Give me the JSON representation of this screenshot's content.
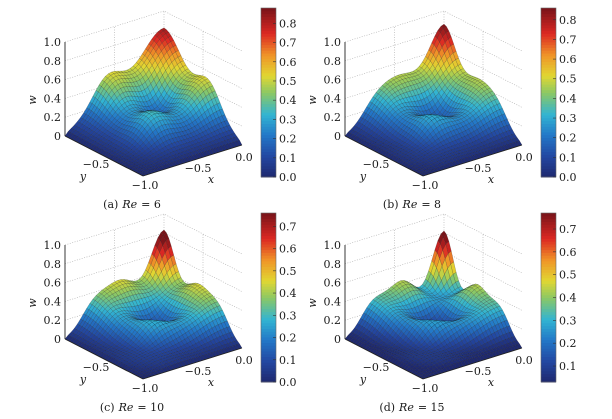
{
  "chart_data": [
    {
      "type": "surface",
      "caption": {
        "label": "(a)",
        "param": "Re",
        "value": "= 6"
      },
      "zlabel": "w",
      "xlabel": "x",
      "ylabel": "y",
      "zticks": [
        "0",
        "0.2",
        "0.4",
        "0.6",
        "0.8",
        "1.0"
      ],
      "xticks": [
        "−1.0",
        "−0.5",
        "0.0"
      ],
      "yticks": [
        "−0.5",
        "−1.0"
      ],
      "zlim": [
        0,
        1
      ],
      "xlim": [
        -1,
        0
      ],
      "ylim": [
        -1,
        0
      ],
      "max_w": 0.88,
      "colorbar": {
        "range": [
          0,
          0.88
        ],
        "ticks": [
          "0.0",
          "0.1",
          "0.2",
          "0.3",
          "0.4",
          "0.5",
          "0.6",
          "0.7",
          "0.8"
        ],
        "tick_values": [
          0,
          0.1,
          0.2,
          0.3,
          0.4,
          0.5,
          0.6,
          0.7,
          0.8
        ]
      },
      "colormap": "jet",
      "grid": true
    },
    {
      "type": "surface",
      "caption": {
        "label": "(b)",
        "param": "Re",
        "value": "= 8"
      },
      "zlabel": "w",
      "xlabel": "x",
      "ylabel": "y",
      "zticks": [
        "0",
        "0.2",
        "0.4",
        "0.6",
        "0.8",
        "1.0"
      ],
      "xticks": [
        "−1.0",
        "−0.5",
        "0.0"
      ],
      "yticks": [
        "−0.5",
        "−1.0"
      ],
      "zlim": [
        0,
        1
      ],
      "xlim": [
        -1,
        0
      ],
      "ylim": [
        -1,
        0
      ],
      "max_w": 0.85,
      "colorbar": {
        "range": [
          0,
          0.86
        ],
        "ticks": [
          "0.0",
          "0.1",
          "0.2",
          "0.3",
          "0.4",
          "0.5",
          "0.6",
          "0.7",
          "0.8"
        ],
        "tick_values": [
          0,
          0.1,
          0.2,
          0.3,
          0.4,
          0.5,
          0.6,
          0.7,
          0.8
        ]
      },
      "colormap": "jet",
      "grid": true
    },
    {
      "type": "surface",
      "caption": {
        "label": "(c)",
        "param": "Re",
        "value": "= 10"
      },
      "zlabel": "w",
      "xlabel": "x",
      "ylabel": "y",
      "zticks": [
        "0",
        "0.2",
        "0.4",
        "0.6",
        "0.8",
        "1.0"
      ],
      "xticks": [
        "−1.0",
        "−0.5",
        "0.0"
      ],
      "yticks": [
        "−0.5",
        "−1.0"
      ],
      "zlim": [
        0,
        1
      ],
      "xlim": [
        -1,
        0
      ],
      "ylim": [
        -1,
        0
      ],
      "max_w": 0.76,
      "colorbar": {
        "range": [
          0,
          0.76
        ],
        "ticks": [
          "0.0",
          "0.1",
          "0.2",
          "0.3",
          "0.4",
          "0.5",
          "0.6",
          "0.7"
        ],
        "tick_values": [
          0,
          0.1,
          0.2,
          0.3,
          0.4,
          0.5,
          0.6,
          0.7
        ]
      },
      "colormap": "jet",
      "grid": true
    },
    {
      "type": "surface",
      "caption": {
        "label": "(d)",
        "param": "Re",
        "value": "= 15"
      },
      "zlabel": "w",
      "xlabel": "x",
      "ylabel": "y",
      "zticks": [
        "0",
        "0.2",
        "0.4",
        "0.6",
        "0.8",
        "1.0"
      ],
      "xticks": [
        "−1.0",
        "−0.5",
        "0.0"
      ],
      "yticks": [
        "−0.5",
        "−1.0"
      ],
      "zlim": [
        0,
        1
      ],
      "xlim": [
        -1,
        0
      ],
      "ylim": [
        -1,
        0
      ],
      "max_w": 0.77,
      "colorbar": {
        "range": [
          0.03,
          0.77
        ],
        "ticks": [
          "0.1",
          "0.2",
          "0.3",
          "0.4",
          "0.5",
          "0.6",
          "0.7"
        ],
        "tick_values": [
          0.1,
          0.2,
          0.3,
          0.4,
          0.5,
          0.6,
          0.7
        ]
      },
      "colormap": "jet",
      "grid": true
    }
  ]
}
